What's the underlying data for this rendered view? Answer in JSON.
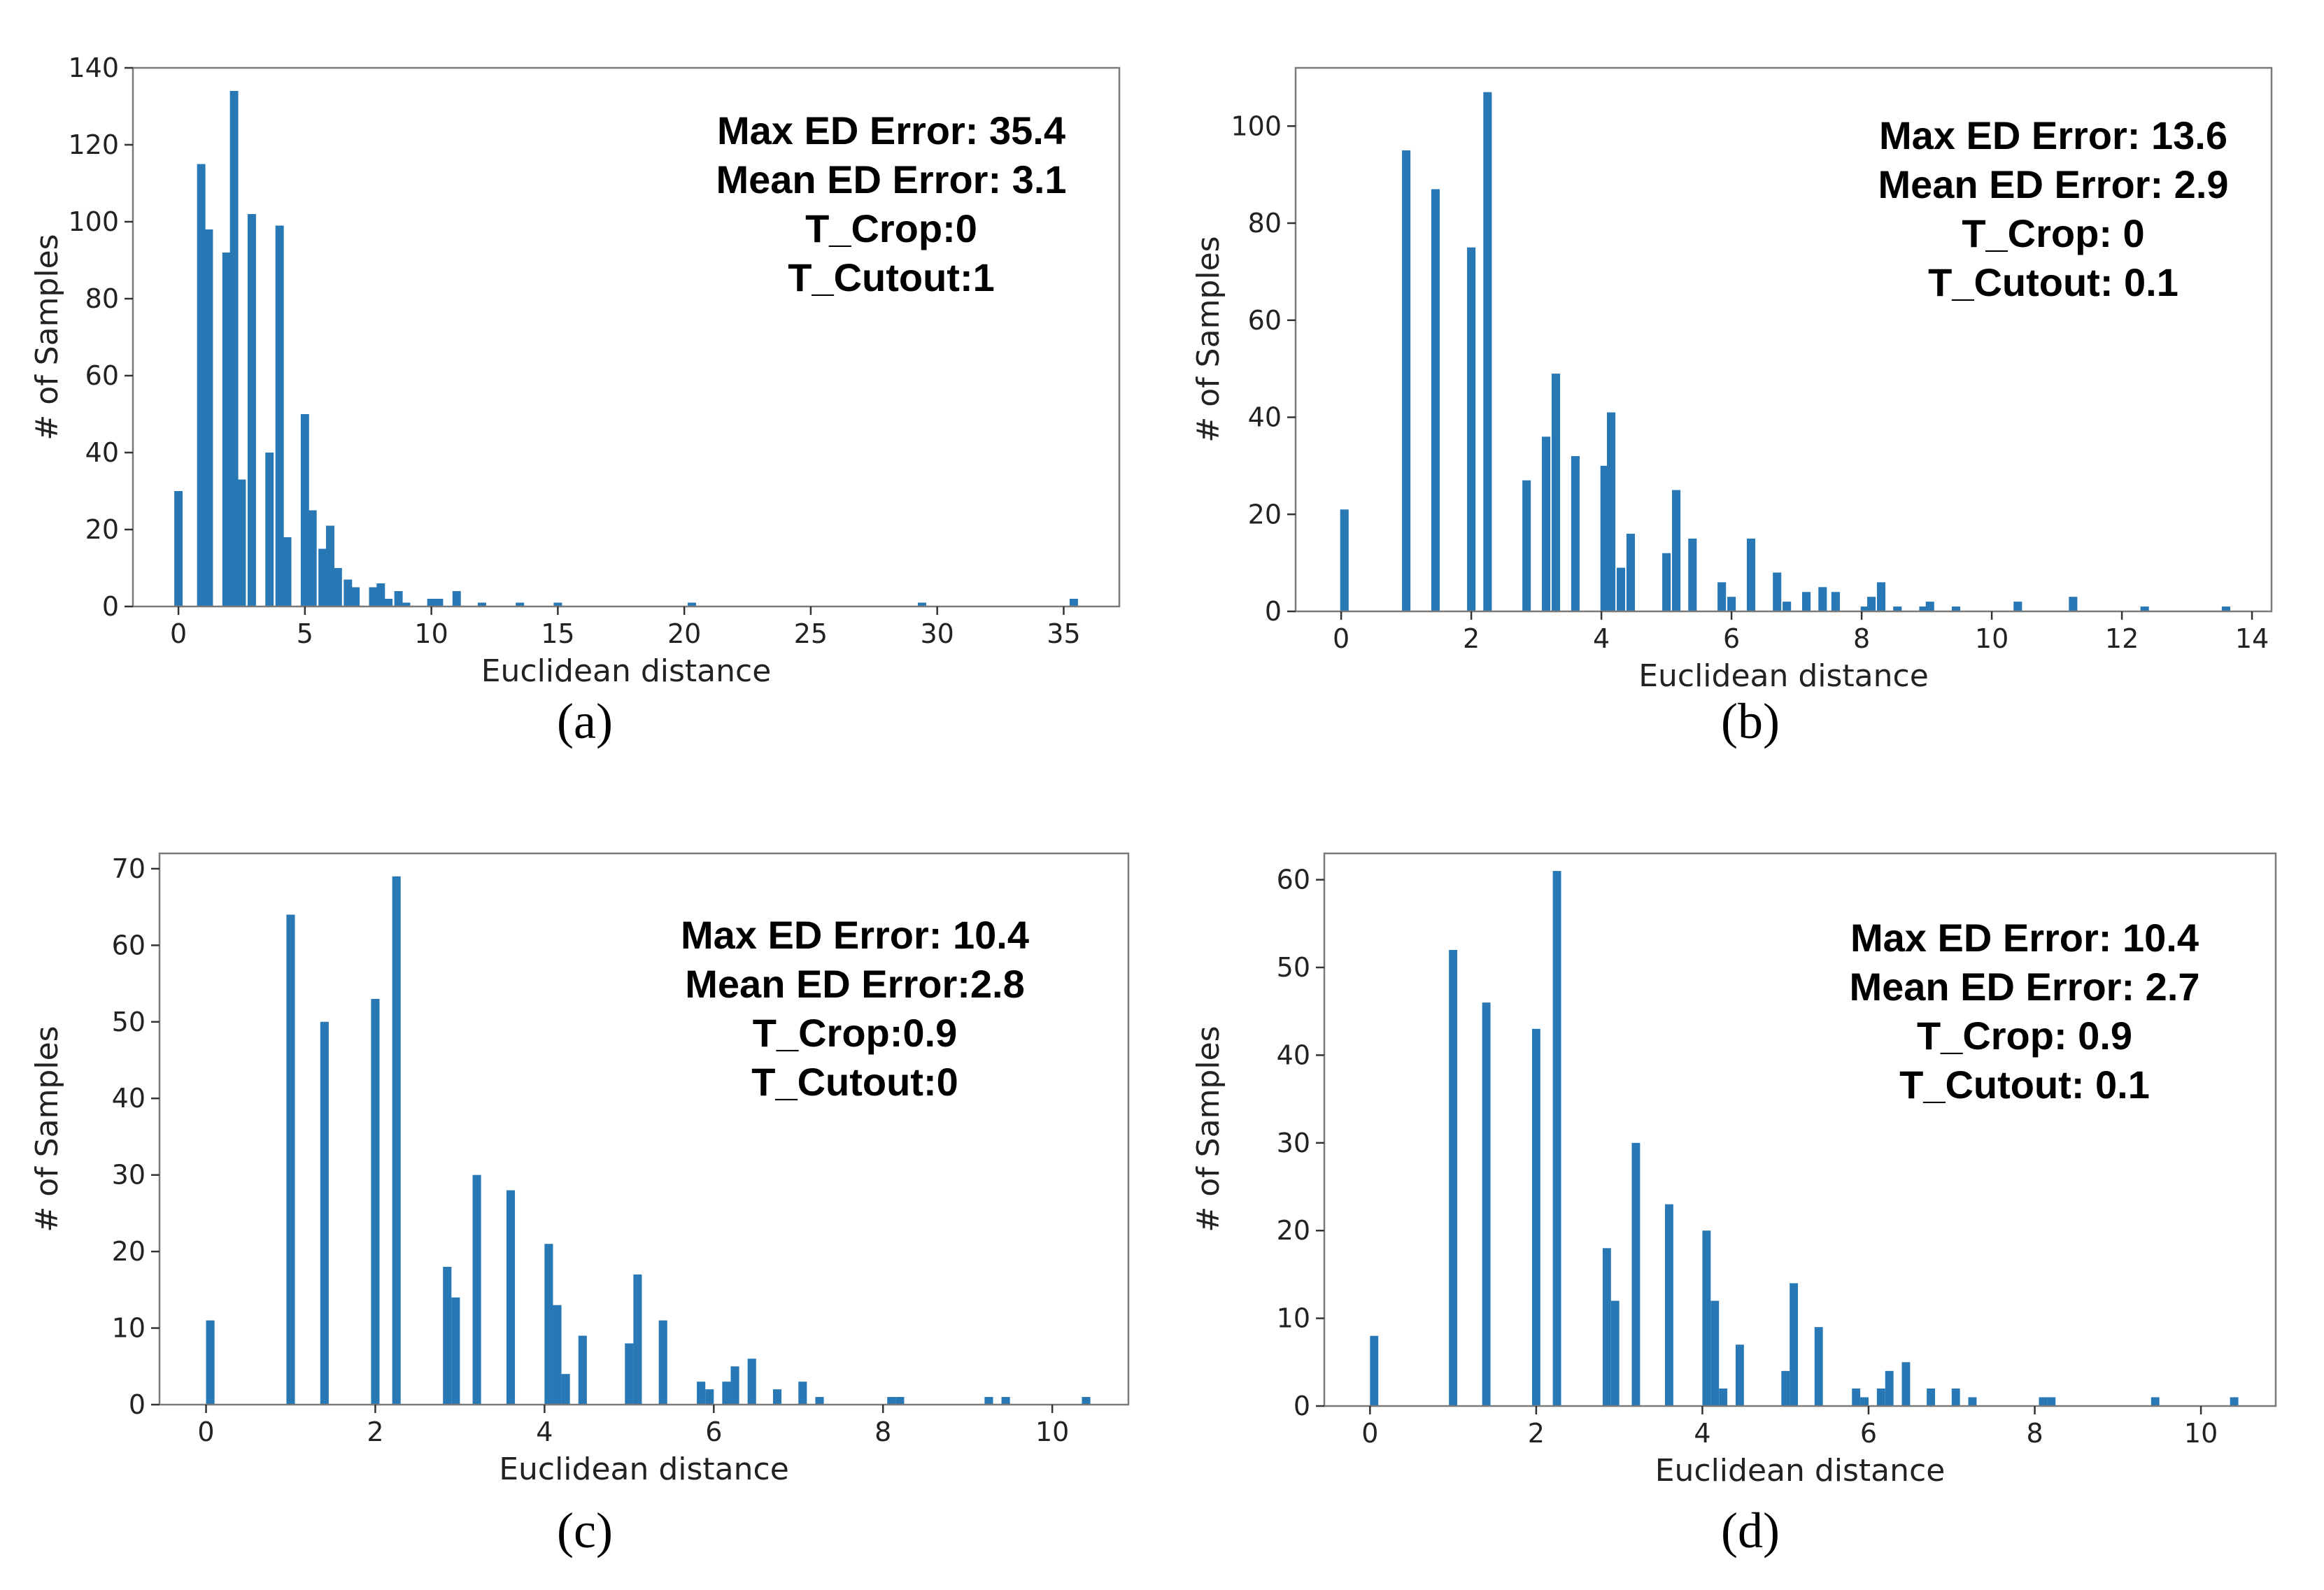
{
  "colors": {
    "bar": "#2878b5",
    "frame": "#7a7a7a",
    "text": "#222222"
  },
  "chart_data": [
    {
      "type": "bar",
      "caption": "(a)",
      "xlabel": "Euclidean distance",
      "ylabel": "# of Samples",
      "xlim": [
        -1.8,
        37.2
      ],
      "ylim": [
        0,
        140
      ],
      "xticks": [
        0,
        5,
        10,
        15,
        20,
        25,
        30,
        35
      ],
      "yticks": [
        0,
        20,
        40,
        60,
        80,
        100,
        120,
        140
      ],
      "bar_width": 0.33,
      "annotations": [
        "Max ED Error: 35.4",
        "Mean ED Error: 3.1",
        "T_Crop:0",
        "T_Cutout:1"
      ],
      "bars": [
        {
          "x": 0.0,
          "y": 30
        },
        {
          "x": 0.9,
          "y": 115
        },
        {
          "x": 1.2,
          "y": 98
        },
        {
          "x": 1.9,
          "y": 92
        },
        {
          "x": 2.2,
          "y": 134
        },
        {
          "x": 2.5,
          "y": 33
        },
        {
          "x": 2.9,
          "y": 102
        },
        {
          "x": 3.6,
          "y": 40
        },
        {
          "x": 4.0,
          "y": 99
        },
        {
          "x": 4.3,
          "y": 18
        },
        {
          "x": 5.0,
          "y": 50
        },
        {
          "x": 5.3,
          "y": 25
        },
        {
          "x": 5.7,
          "y": 15
        },
        {
          "x": 6.0,
          "y": 21
        },
        {
          "x": 6.3,
          "y": 10
        },
        {
          "x": 6.7,
          "y": 7
        },
        {
          "x": 7.0,
          "y": 5
        },
        {
          "x": 7.7,
          "y": 5
        },
        {
          "x": 8.0,
          "y": 6
        },
        {
          "x": 8.3,
          "y": 2
        },
        {
          "x": 8.7,
          "y": 4
        },
        {
          "x": 9.0,
          "y": 1
        },
        {
          "x": 10.0,
          "y": 2
        },
        {
          "x": 10.3,
          "y": 2
        },
        {
          "x": 11.0,
          "y": 4
        },
        {
          "x": 12.0,
          "y": 1
        },
        {
          "x": 13.5,
          "y": 1
        },
        {
          "x": 15.0,
          "y": 1
        },
        {
          "x": 20.3,
          "y": 1
        },
        {
          "x": 29.4,
          "y": 1
        },
        {
          "x": 35.4,
          "y": 2
        }
      ]
    },
    {
      "type": "bar",
      "caption": "(b)",
      "xlabel": "Euclidean distance",
      "ylabel": "# of Samples",
      "xlim": [
        -0.7,
        14.3
      ],
      "ylim": [
        0,
        112
      ],
      "xticks": [
        0,
        2,
        4,
        6,
        8,
        10,
        12,
        14
      ],
      "yticks": [
        0,
        20,
        40,
        60,
        80,
        100
      ],
      "bar_width": 0.13,
      "annotations": [
        "Max ED Error: 13.6",
        "Mean ED Error: 2.9",
        "T_Crop: 0",
        "T_Cutout: 0.1"
      ],
      "bars": [
        {
          "x": 0.05,
          "y": 21
        },
        {
          "x": 1.0,
          "y": 95
        },
        {
          "x": 1.45,
          "y": 87
        },
        {
          "x": 2.0,
          "y": 75
        },
        {
          "x": 2.25,
          "y": 107
        },
        {
          "x": 2.85,
          "y": 27
        },
        {
          "x": 3.15,
          "y": 36
        },
        {
          "x": 3.3,
          "y": 49
        },
        {
          "x": 3.6,
          "y": 32
        },
        {
          "x": 4.05,
          "y": 30
        },
        {
          "x": 4.15,
          "y": 41
        },
        {
          "x": 4.3,
          "y": 9
        },
        {
          "x": 4.45,
          "y": 16
        },
        {
          "x": 5.0,
          "y": 12
        },
        {
          "x": 5.15,
          "y": 25
        },
        {
          "x": 5.4,
          "y": 15
        },
        {
          "x": 5.85,
          "y": 6
        },
        {
          "x": 6.0,
          "y": 3
        },
        {
          "x": 6.3,
          "y": 15
        },
        {
          "x": 6.7,
          "y": 8
        },
        {
          "x": 6.85,
          "y": 2
        },
        {
          "x": 7.15,
          "y": 4
        },
        {
          "x": 7.4,
          "y": 5
        },
        {
          "x": 7.6,
          "y": 4
        },
        {
          "x": 8.05,
          "y": 1
        },
        {
          "x": 8.15,
          "y": 3
        },
        {
          "x": 8.3,
          "y": 6
        },
        {
          "x": 8.55,
          "y": 1
        },
        {
          "x": 8.95,
          "y": 1
        },
        {
          "x": 9.05,
          "y": 2
        },
        {
          "x": 9.45,
          "y": 1
        },
        {
          "x": 10.4,
          "y": 2
        },
        {
          "x": 11.25,
          "y": 3
        },
        {
          "x": 12.35,
          "y": 1
        },
        {
          "x": 13.6,
          "y": 1
        }
      ]
    },
    {
      "type": "bar",
      "caption": "(c)",
      "xlabel": "Euclidean distance",
      "ylabel": "# of Samples",
      "xlim": [
        -0.55,
        10.9
      ],
      "ylim": [
        0,
        72
      ],
      "xticks": [
        0,
        2,
        4,
        6,
        8,
        10
      ],
      "yticks": [
        0,
        10,
        20,
        30,
        40,
        50,
        60,
        70
      ],
      "bar_width": 0.1,
      "annotations": [
        "Max ED Error: 10.4",
        "Mean ED Error:2.8",
        "T_Crop:0.9",
        "T_Cutout:0"
      ],
      "bars": [
        {
          "x": 0.05,
          "y": 11
        },
        {
          "x": 1.0,
          "y": 64
        },
        {
          "x": 1.4,
          "y": 50
        },
        {
          "x": 2.0,
          "y": 53
        },
        {
          "x": 2.25,
          "y": 69
        },
        {
          "x": 2.85,
          "y": 18
        },
        {
          "x": 2.95,
          "y": 14
        },
        {
          "x": 3.2,
          "y": 30
        },
        {
          "x": 3.6,
          "y": 28
        },
        {
          "x": 4.05,
          "y": 21
        },
        {
          "x": 4.15,
          "y": 13
        },
        {
          "x": 4.25,
          "y": 4
        },
        {
          "x": 4.45,
          "y": 9
        },
        {
          "x": 5.0,
          "y": 8
        },
        {
          "x": 5.1,
          "y": 17
        },
        {
          "x": 5.4,
          "y": 11
        },
        {
          "x": 5.85,
          "y": 3
        },
        {
          "x": 5.95,
          "y": 2
        },
        {
          "x": 6.15,
          "y": 3
        },
        {
          "x": 6.25,
          "y": 5
        },
        {
          "x": 6.45,
          "y": 6
        },
        {
          "x": 6.75,
          "y": 2
        },
        {
          "x": 7.05,
          "y": 3
        },
        {
          "x": 7.25,
          "y": 1
        },
        {
          "x": 8.1,
          "y": 1
        },
        {
          "x": 8.2,
          "y": 1
        },
        {
          "x": 9.25,
          "y": 1
        },
        {
          "x": 9.45,
          "y": 1
        },
        {
          "x": 10.4,
          "y": 1
        }
      ]
    },
    {
      "type": "bar",
      "caption": "(d)",
      "xlabel": "Euclidean distance",
      "ylabel": "# of Samples",
      "xlim": [
        -0.55,
        10.9
      ],
      "ylim": [
        0,
        63
      ],
      "xticks": [
        0,
        2,
        4,
        6,
        8,
        10
      ],
      "yticks": [
        0,
        10,
        20,
        30,
        40,
        50,
        60
      ],
      "bar_width": 0.1,
      "annotations": [
        "Max ED Error: 10.4",
        "Mean ED Error: 2.7",
        "T_Crop: 0.9",
        "T_Cutout: 0.1"
      ],
      "bars": [
        {
          "x": 0.05,
          "y": 8
        },
        {
          "x": 1.0,
          "y": 52
        },
        {
          "x": 1.4,
          "y": 46
        },
        {
          "x": 2.0,
          "y": 43
        },
        {
          "x": 2.25,
          "y": 61
        },
        {
          "x": 2.85,
          "y": 18
        },
        {
          "x": 2.95,
          "y": 12
        },
        {
          "x": 3.2,
          "y": 30
        },
        {
          "x": 3.6,
          "y": 23
        },
        {
          "x": 4.05,
          "y": 20
        },
        {
          "x": 4.15,
          "y": 12
        },
        {
          "x": 4.25,
          "y": 2
        },
        {
          "x": 4.45,
          "y": 7
        },
        {
          "x": 5.0,
          "y": 4
        },
        {
          "x": 5.1,
          "y": 14
        },
        {
          "x": 5.4,
          "y": 9
        },
        {
          "x": 5.85,
          "y": 2
        },
        {
          "x": 5.95,
          "y": 1
        },
        {
          "x": 6.15,
          "y": 2
        },
        {
          "x": 6.25,
          "y": 4
        },
        {
          "x": 6.45,
          "y": 5
        },
        {
          "x": 6.75,
          "y": 2
        },
        {
          "x": 7.05,
          "y": 2
        },
        {
          "x": 7.25,
          "y": 1
        },
        {
          "x": 8.1,
          "y": 1
        },
        {
          "x": 8.2,
          "y": 1
        },
        {
          "x": 9.45,
          "y": 1
        },
        {
          "x": 10.4,
          "y": 1
        }
      ]
    }
  ]
}
